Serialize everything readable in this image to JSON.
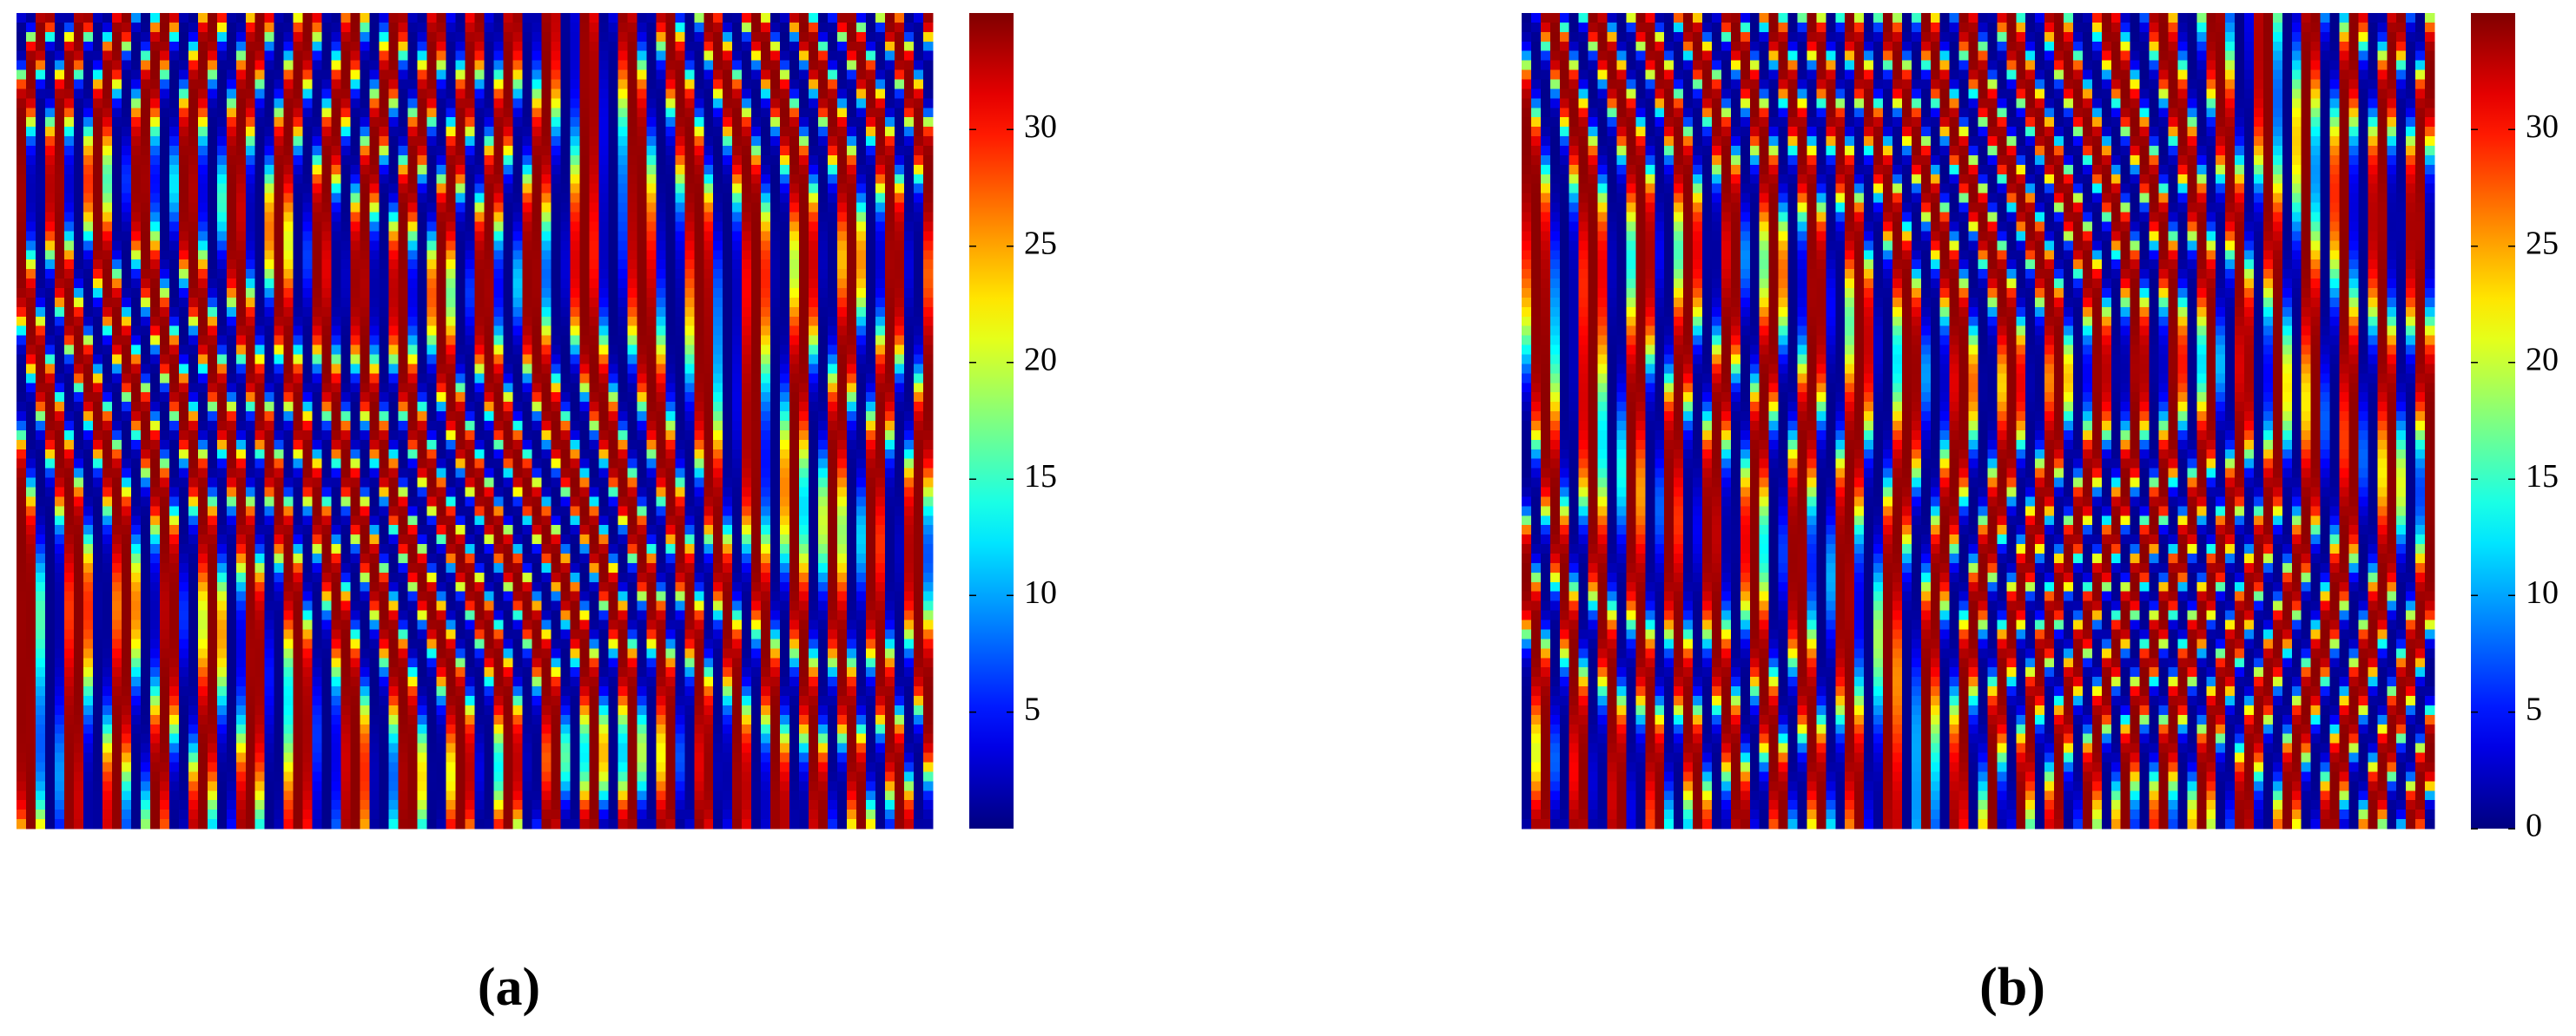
{
  "chart_data": [
    {
      "type": "heatmap",
      "label": "(a)",
      "colormap": "jet",
      "clim": [
        0,
        35
      ],
      "cticks": [
        5,
        10,
        15,
        20,
        25,
        30
      ]
    },
    {
      "type": "heatmap",
      "label": "(b)",
      "colormap": "jet",
      "clim": [
        0,
        35
      ],
      "cticks": [
        0,
        5,
        10,
        15,
        20,
        25,
        30
      ]
    }
  ]
}
